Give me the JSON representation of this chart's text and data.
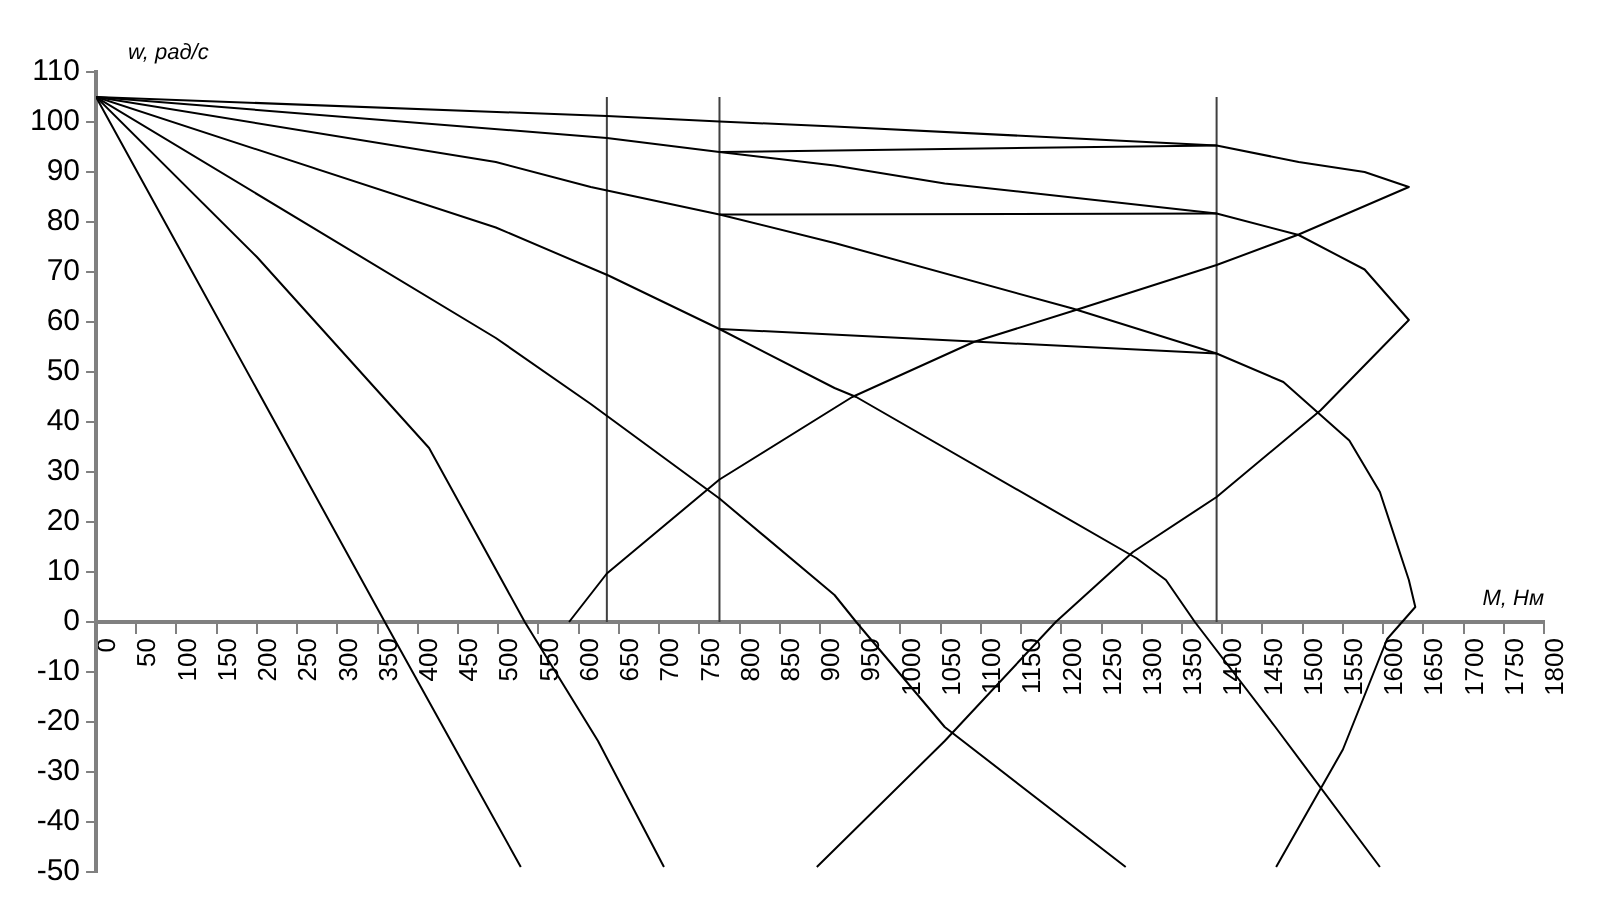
{
  "chart_data": {
    "type": "line",
    "xlabel": "M, Нм",
    "ylabel": "w, рад/с",
    "xlim": [
      0,
      1800
    ],
    "xticks": [
      0,
      50,
      100,
      150,
      200,
      250,
      300,
      350,
      400,
      450,
      500,
      550,
      600,
      650,
      700,
      750,
      800,
      850,
      900,
      950,
      1000,
      1050,
      1100,
      1150,
      1200,
      1250,
      1300,
      1350,
      1400,
      1450,
      1500,
      1550,
      1600,
      1650,
      1700,
      1750,
      1800
    ],
    "ylim": [
      -50,
      110
    ],
    "yticks": [
      -50,
      -40,
      -30,
      -20,
      -10,
      0,
      10,
      20,
      30,
      40,
      50,
      60,
      70,
      80,
      90,
      100,
      110
    ],
    "grid": false,
    "legend": false,
    "marker": "none",
    "line_style": "solid",
    "series": [
      {
        "color": "#000000",
        "x": [
          0,
          635,
          775,
          918,
          1393,
          1495,
          1577,
          1632,
          1495,
          1393,
          1220,
          1091,
          940,
          775,
          635,
          588
        ],
        "values": [
          105,
          101.2,
          100.1,
          99.1,
          95.3,
          92,
          90,
          87,
          77.5,
          71.4,
          62.5,
          56,
          45,
          28.5,
          9.7,
          0
        ]
      },
      {
        "color": "#000000",
        "x": [
          0,
          635,
          775,
          918,
          1055,
          1393,
          1495,
          1577,
          1632,
          1522,
          1393,
          1289,
          1193,
          1055,
          896
        ],
        "values": [
          105,
          96.8,
          94,
          91.3,
          87.7,
          81.7,
          77.4,
          70.5,
          60.4,
          42.3,
          25,
          14,
          0,
          -23.8,
          -49
        ]
      },
      {
        "color": "#000000",
        "x": [
          0,
          497,
          615,
          775,
          918,
          1214,
          1393,
          1476,
          1558,
          1596,
          1632,
          1640,
          1605,
          1550,
          1467
        ],
        "values": [
          105,
          92,
          87,
          81.5,
          75.8,
          62.7,
          53.7,
          48,
          36.3,
          26,
          8.4,
          3,
          -3.4,
          -25.5,
          -49
        ]
      },
      {
        "color": "#000000",
        "x": [
          0,
          497,
          637,
          775,
          918,
          945,
          1293,
          1330,
          1366,
          1466,
          1596
        ],
        "values": [
          105,
          78.9,
          69.3,
          58.6,
          46.8,
          45,
          12.8,
          8.4,
          0,
          -21,
          -49
        ]
      },
      {
        "color": "#000000",
        "x": [
          0,
          497,
          615,
          775,
          918,
          945,
          1055,
          1280
        ],
        "values": [
          105,
          56.8,
          43.6,
          24.7,
          5.4,
          0,
          -21,
          -49
        ]
      },
      {
        "color": "#000000",
        "x": [
          0,
          359,
          528
        ],
        "values": [
          105,
          0,
          -49
        ]
      },
      {
        "color": "#000000",
        "x": [
          0,
          200,
          414,
          533,
          624,
          706
        ],
        "values": [
          105,
          73,
          34.8,
          0,
          -23.8,
          -49
        ]
      },
      {
        "color": "#000000",
        "x": [
          775,
          1393
        ],
        "values": [
          94,
          95.3
        ]
      },
      {
        "color": "#000000",
        "x": [
          775,
          1393
        ],
        "values": [
          81.5,
          81.7
        ]
      },
      {
        "color": "#000000",
        "x": [
          775,
          1393
        ],
        "values": [
          58.6,
          53.7
        ]
      },
      {
        "color": "#404040",
        "x": [
          635,
          635
        ],
        "values": [
          0,
          105
        ]
      },
      {
        "color": "#404040",
        "x": [
          775,
          775
        ],
        "values": [
          0,
          105
        ]
      },
      {
        "color": "#404040",
        "x": [
          1393,
          1393
        ],
        "values": [
          0,
          105
        ]
      }
    ]
  }
}
